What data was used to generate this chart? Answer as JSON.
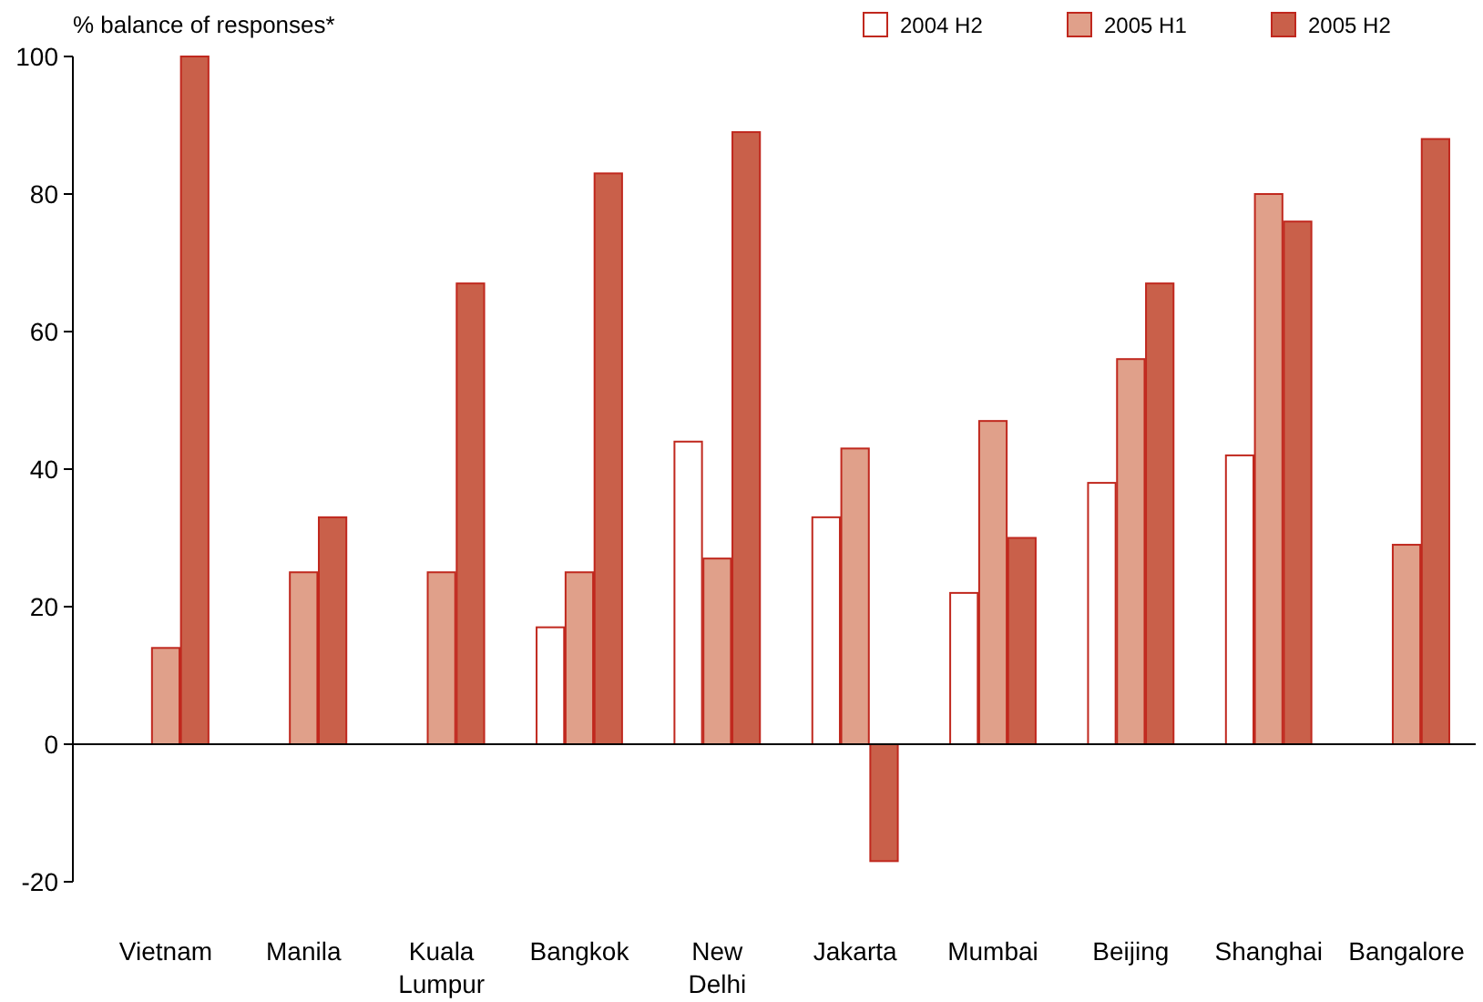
{
  "chart_data": {
    "type": "bar",
    "ylabel": "% balance of responses*",
    "categories": [
      "Vietnam",
      "Manila",
      "Kuala Lumpur",
      "Bangkok",
      "New Delhi",
      "Jakarta",
      "Mumbai",
      "Beijing",
      "Shanghai",
      "Bangalore"
    ],
    "series": [
      {
        "name": "2004 H2",
        "color": "#ffffff",
        "values": [
          0,
          0,
          0,
          17,
          44,
          33,
          22,
          38,
          42,
          0
        ]
      },
      {
        "name": "2005 H1",
        "color": "#e0a08a",
        "values": [
          14,
          25,
          25,
          25,
          27,
          43,
          47,
          56,
          80,
          29
        ]
      },
      {
        "name": "2005 H2",
        "color": "#c9604a",
        "values": [
          100,
          33,
          67,
          83,
          89,
          -17,
          30,
          67,
          76,
          88
        ]
      }
    ],
    "ylim": [
      -20,
      100
    ],
    "yticks": [
      -20,
      0,
      20,
      40,
      60,
      80,
      100
    ],
    "legend": "top right"
  }
}
